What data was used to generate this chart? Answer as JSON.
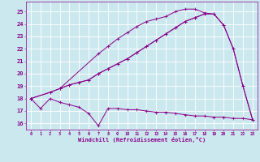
{
  "bg_color": "#cce8ef",
  "grid_color": "#aadddd",
  "line_color": "#880088",
  "xlabel": "Windchill (Refroidissement éolien,°C)",
  "xlim": [
    -0.5,
    23.5
  ],
  "ylim": [
    15.5,
    25.8
  ],
  "yticks": [
    16,
    17,
    18,
    19,
    20,
    21,
    22,
    23,
    24,
    25
  ],
  "xticks": [
    0,
    1,
    2,
    3,
    4,
    5,
    6,
    7,
    8,
    9,
    10,
    11,
    12,
    13,
    14,
    15,
    16,
    17,
    18,
    19,
    20,
    21,
    22,
    23
  ],
  "curves": [
    {
      "x": [
        0,
        1,
        2,
        3,
        4,
        5,
        6,
        7,
        8,
        9,
        10,
        11,
        12,
        13,
        14,
        15,
        16,
        17,
        18,
        19,
        20,
        21,
        22,
        23
      ],
      "y": [
        18.0,
        17.2,
        18.0,
        17.7,
        17.5,
        17.3,
        16.8,
        15.8,
        17.2,
        17.2,
        17.1,
        17.1,
        17.0,
        16.9,
        16.9,
        16.8,
        16.7,
        16.6,
        16.6,
        16.5,
        16.5,
        16.4,
        16.4,
        16.3
      ]
    },
    {
      "x": [
        0,
        2,
        3,
        4,
        5,
        6,
        7,
        8,
        9,
        10,
        11,
        12,
        13,
        14,
        15,
        16,
        17,
        18
      ],
      "y": [
        18.0,
        18.5,
        18.8,
        19.1,
        19.3,
        19.5,
        20.0,
        20.4,
        20.8,
        21.2,
        21.7,
        22.2,
        22.7,
        23.2,
        23.7,
        24.2,
        24.5,
        24.8
      ]
    },
    {
      "x": [
        0,
        2,
        3,
        4,
        5,
        6,
        7,
        8,
        9,
        10,
        11,
        12,
        13,
        14,
        15,
        16,
        17,
        18,
        19,
        20,
        21,
        22,
        23
      ],
      "y": [
        18.0,
        18.5,
        18.8,
        19.1,
        19.3,
        19.5,
        20.0,
        20.4,
        20.8,
        21.2,
        21.7,
        22.2,
        22.7,
        23.2,
        23.7,
        24.2,
        24.5,
        24.8,
        24.8,
        23.9,
        22.0,
        19.0,
        16.3
      ]
    },
    {
      "x": [
        3,
        7,
        8,
        9,
        10,
        11,
        12,
        13,
        14,
        15,
        16,
        17,
        18,
        19,
        20,
        21,
        22,
        23
      ],
      "y": [
        18.8,
        21.6,
        22.2,
        22.8,
        23.3,
        23.8,
        24.2,
        24.4,
        24.6,
        25.0,
        25.2,
        25.2,
        24.9,
        24.8,
        23.9,
        22.0,
        19.0,
        16.3
      ]
    }
  ]
}
